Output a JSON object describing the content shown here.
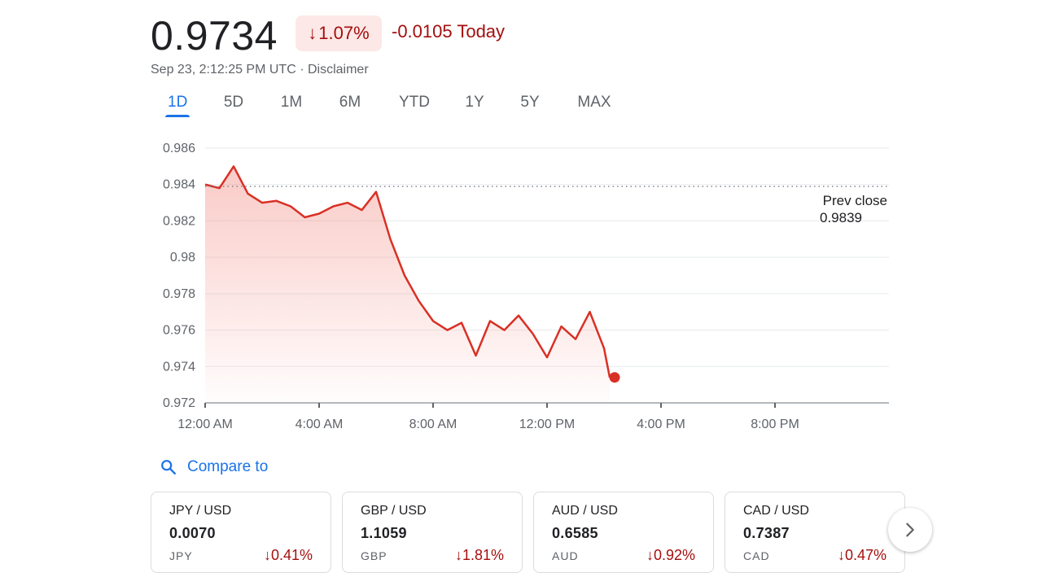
{
  "quote": {
    "price": "0.9734",
    "change_percent": "1.07%",
    "change_today": "-0.0105 Today",
    "timestamp": "Sep 23, 2:12:25 PM UTC",
    "separator": " · ",
    "disclaimer": "Disclaimer"
  },
  "tabs": [
    {
      "label": "1D",
      "active": true
    },
    {
      "label": "5D",
      "active": false
    },
    {
      "label": "1M",
      "active": false
    },
    {
      "label": "6M",
      "active": false
    },
    {
      "label": "YTD",
      "active": false
    },
    {
      "label": "1Y",
      "active": false
    },
    {
      "label": "5Y",
      "active": false
    },
    {
      "label": "MAX",
      "active": false
    }
  ],
  "chart_data": {
    "type": "line",
    "series": [
      {
        "x": [
          "00:00",
          "00:30",
          "01:00",
          "01:30",
          "02:00",
          "02:30",
          "03:00",
          "03:30",
          "04:00",
          "04:30",
          "05:00",
          "05:30",
          "06:00",
          "06:30",
          "07:00",
          "07:30",
          "08:00",
          "08:30",
          "09:00",
          "09:30",
          "10:00",
          "10:30",
          "11:00",
          "11:30",
          "12:00",
          "12:30",
          "13:00",
          "13:30",
          "14:00",
          "14:12"
        ],
        "y": [
          0.984,
          0.9838,
          0.985,
          0.9835,
          0.983,
          0.9831,
          0.9828,
          0.9822,
          0.9824,
          0.9828,
          0.983,
          0.9826,
          0.9836,
          0.981,
          0.979,
          0.9776,
          0.9765,
          0.976,
          0.9764,
          0.9746,
          0.9765,
          0.976,
          0.9768,
          0.9758,
          0.9745,
          0.9762,
          0.9755,
          0.977,
          0.975,
          0.9734
        ]
      }
    ],
    "yticks": [
      "0.972",
      "0.974",
      "0.976",
      "0.978",
      "0.98",
      "0.982",
      "0.984",
      "0.986"
    ],
    "xticks": [
      "12:00 AM",
      "4:00 AM",
      "8:00 AM",
      "12:00 PM",
      "4:00 PM",
      "8:00 PM"
    ],
    "ylim": [
      0.972,
      0.986
    ],
    "xlim": [
      "00:00",
      "24:00"
    ],
    "prev_close": 0.9839,
    "prev_close_label": "Prev close",
    "prev_close_value": "0.9839",
    "line_color": "#d93025",
    "grid": true
  },
  "compare": {
    "label": "Compare to",
    "icon": "search-icon"
  },
  "cards": [
    {
      "pair": "JPY / USD",
      "value": "0.0070",
      "code": "JPY",
      "change": "0.41%"
    },
    {
      "pair": "GBP / USD",
      "value": "1.1059",
      "code": "GBP",
      "change": "1.81%"
    },
    {
      "pair": "AUD / USD",
      "value": "0.6585",
      "code": "AUD",
      "change": "0.92%"
    },
    {
      "pair": "CAD / USD",
      "value": "0.7387",
      "code": "CAD",
      "change": "0.47%"
    }
  ],
  "colors": {
    "negative": "#a50e0e",
    "negative_bg": "#fce8e6",
    "accent": "#1a73e8"
  }
}
